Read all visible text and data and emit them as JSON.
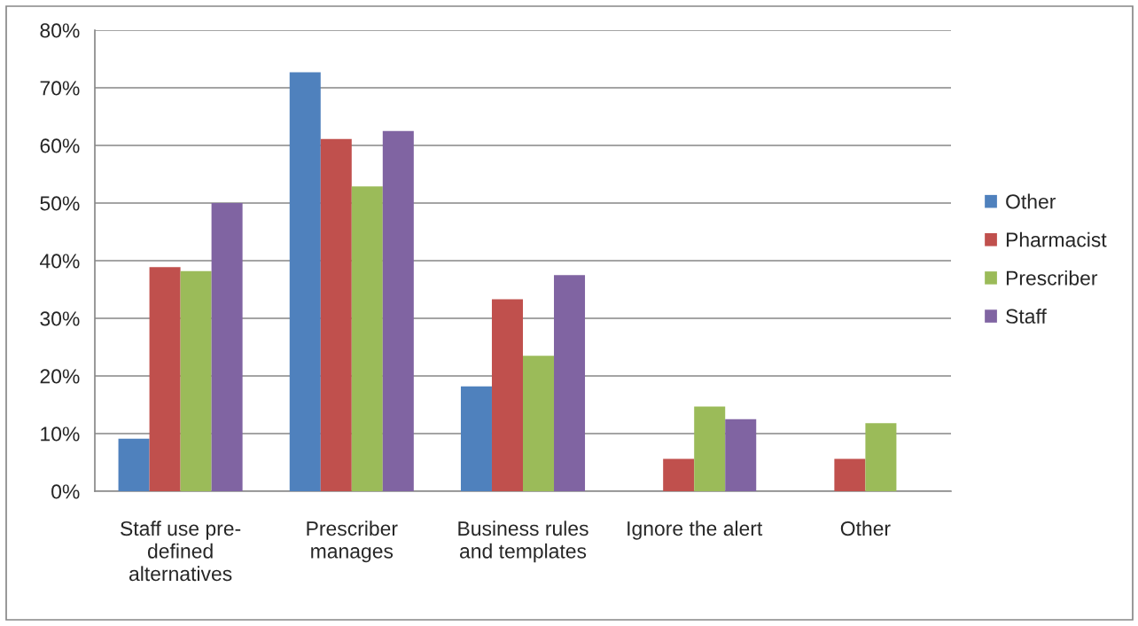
{
  "chart_data": {
    "type": "bar",
    "categories": [
      "Staff use pre-defined alternatives",
      "Prescriber manages",
      "Business rules and templates",
      "Ignore the alert",
      "Other"
    ],
    "series": [
      {
        "name": "Other",
        "color": "#4f81bd",
        "values": [
          9.1,
          72.7,
          18.2,
          null,
          null
        ]
      },
      {
        "name": "Pharmacist",
        "color": "#c0504d",
        "values": [
          38.9,
          61.1,
          33.3,
          5.6,
          5.6
        ]
      },
      {
        "name": "Prescriber",
        "color": "#9bbb59",
        "values": [
          38.2,
          52.9,
          23.5,
          14.7,
          11.8
        ]
      },
      {
        "name": "Staff",
        "color": "#8064a2",
        "values": [
          50.0,
          62.5,
          37.5,
          12.5,
          null
        ]
      }
    ],
    "ylim": [
      0,
      80
    ],
    "yticks": [
      {
        "value": 0,
        "label": "0%"
      },
      {
        "value": 10,
        "label": "10%"
      },
      {
        "value": 20,
        "label": "20%"
      },
      {
        "value": 30,
        "label": "30%"
      },
      {
        "value": 40,
        "label": "40%"
      },
      {
        "value": 50,
        "label": "50%"
      },
      {
        "value": 60,
        "label": "60%"
      },
      {
        "value": 70,
        "label": "70%"
      },
      {
        "value": 80,
        "label": "80%"
      }
    ],
    "grid": "y",
    "legend": "right"
  }
}
